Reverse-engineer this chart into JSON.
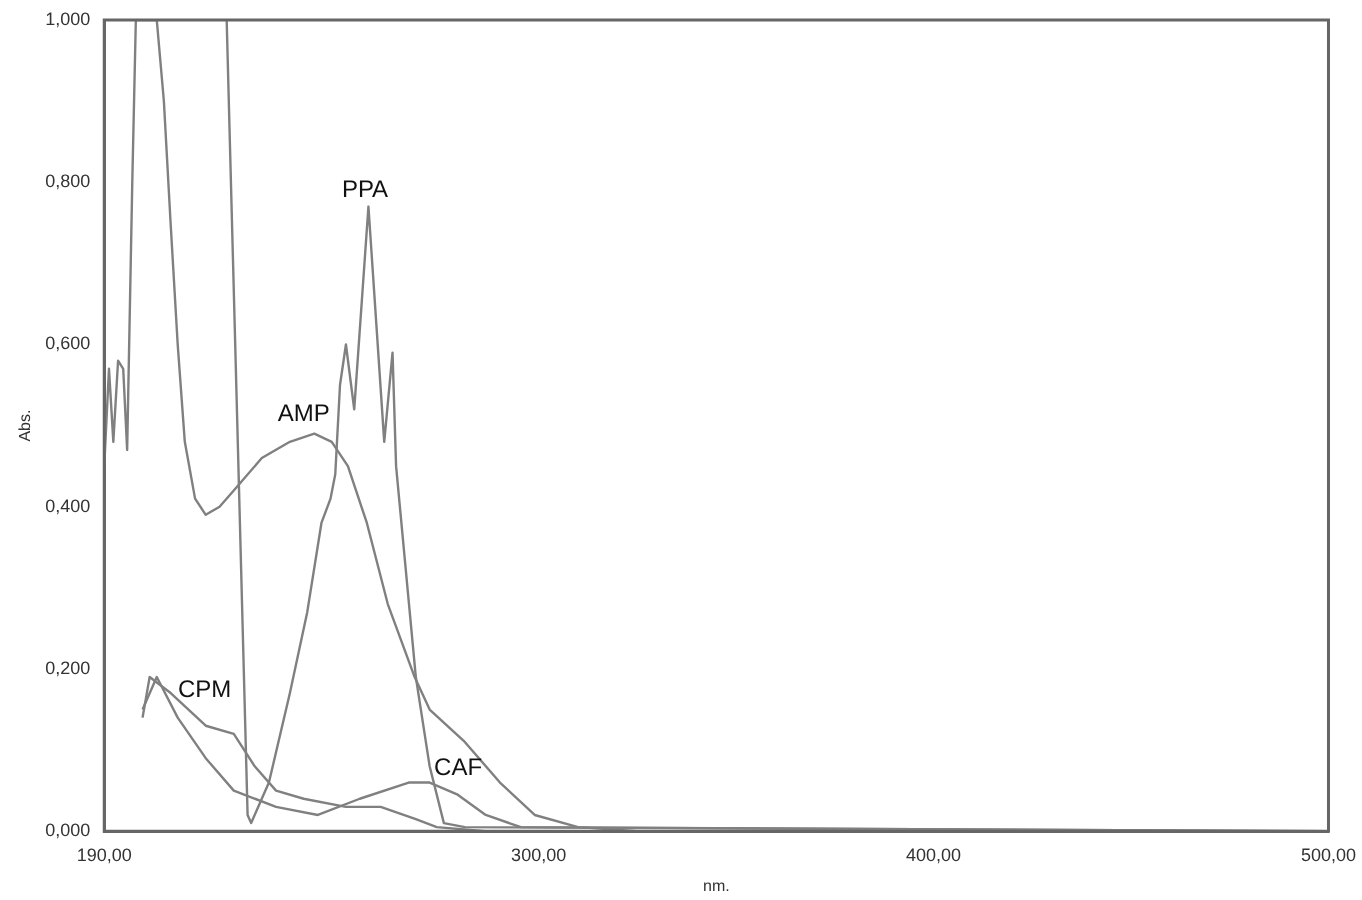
{
  "chart_data": {
    "type": "line",
    "xlabel": "nm.",
    "ylabel": "Abs.",
    "xlim": [
      190,
      500
    ],
    "ylim": [
      0,
      1
    ],
    "xticks": [
      {
        "value": 190,
        "label": "190,00"
      },
      {
        "value": 300,
        "label": "300,00"
      },
      {
        "value": 400,
        "label": "400,00"
      },
      {
        "value": 500,
        "label": "500,00"
      }
    ],
    "yticks": [
      {
        "value": 0,
        "label": "0,000"
      },
      {
        "value": 0.2,
        "label": "0,200"
      },
      {
        "value": 0.4,
        "label": "0,400"
      },
      {
        "value": 0.6,
        "label": "0,600"
      },
      {
        "value": 0.8,
        "label": "0,800"
      },
      {
        "value": 1,
        "label": "1,000"
      }
    ],
    "grid": false,
    "legend": false,
    "marker": "none",
    "line_style": "solid",
    "series": [
      {
        "name": "AMP",
        "color": "#808080",
        "x": [
          190,
          191.2,
          192.3,
          193.5,
          194.8,
          195.8,
          197.1,
          198,
          203.3,
          205.1,
          206.8,
          208.6,
          210.4,
          213,
          215.7,
          219.2,
          222.8,
          229.9,
          237,
          243.2,
          247.6,
          251.7,
          256.5,
          261.8,
          268.6,
          272.4,
          281.3,
          290.2,
          299,
          310,
          325,
          500
        ],
        "values": [
          0.45,
          0.57,
          0.48,
          0.58,
          0.57,
          0.47,
          0.8,
          1,
          1,
          0.9,
          0.75,
          0.6,
          0.48,
          0.41,
          0.39,
          0.4,
          0.42,
          0.46,
          0.48,
          0.49,
          0.48,
          0.45,
          0.38,
          0.28,
          0.19,
          0.15,
          0.11,
          0.06,
          0.02,
          0.005,
          0,
          0
        ]
      },
      {
        "name": "PPA",
        "color": "#808080",
        "x": [
          221,
          226.3,
          227.2,
          231.7,
          237,
          241.4,
          245,
          247.3,
          248.5,
          249.7,
          251.2,
          253.3,
          256.9,
          260.9,
          263,
          263.9,
          268.9,
          272.4,
          276,
          281.3,
          500
        ],
        "values": [
          1,
          0.02,
          0.01,
          0.06,
          0.17,
          0.27,
          0.38,
          0.41,
          0.44,
          0.55,
          0.6,
          0.52,
          0.77,
          0.48,
          0.59,
          0.45,
          0.19,
          0.08,
          0.01,
          0.005,
          0
        ]
      },
      {
        "name": "CPM",
        "color": "#808080",
        "x": [
          199.7,
          201.5,
          206.9,
          215.7,
          222.8,
          228.1,
          233.5,
          240.5,
          251.2,
          260,
          268.9,
          274.2,
          286.6,
          500
        ],
        "values": [
          0.14,
          0.19,
          0.17,
          0.13,
          0.12,
          0.08,
          0.05,
          0.04,
          0.03,
          0.03,
          0.015,
          0.005,
          0,
          0
        ]
      },
      {
        "name": "CAF",
        "color": "#808080",
        "x": [
          199.7,
          203.3,
          208.6,
          215.7,
          222.8,
          233.5,
          244.1,
          254.7,
          267.1,
          272.4,
          279.5,
          286.6,
          295.5,
          500
        ],
        "values": [
          0.15,
          0.19,
          0.14,
          0.09,
          0.05,
          0.03,
          0.02,
          0.04,
          0.06,
          0.06,
          0.045,
          0.02,
          0.005,
          0
        ]
      }
    ]
  }
}
